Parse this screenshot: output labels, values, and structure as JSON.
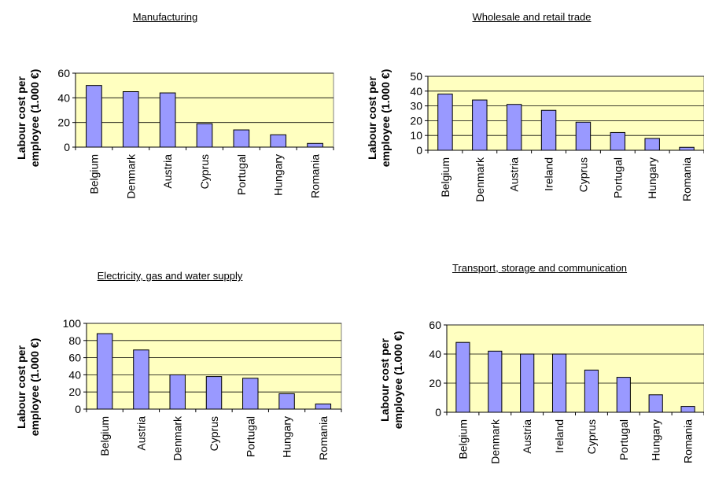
{
  "chart_data": [
    {
      "type": "bar",
      "title": "Manufacturing",
      "ylabel": "Labour cost per\nemployee (1.000 €)",
      "categories": [
        "Belgium",
        "Denmark",
        "Austria",
        "Cyprus",
        "Portugal",
        "Hungary",
        "Romania"
      ],
      "values": [
        50,
        45,
        44,
        19,
        14,
        10,
        3
      ],
      "ylim": [
        0,
        60
      ],
      "yticks": [
        "0",
        "20",
        "40",
        "60"
      ],
      "grid": true,
      "colors": {
        "bar": "#9999ff",
        "plot_bg": "#ffffc0"
      }
    },
    {
      "type": "bar",
      "title": "Wholesale and retail trade",
      "ylabel": "Labour cost per\nemployee (1.000 €)",
      "categories": [
        "Belgium",
        "Denmark",
        "Austria",
        "Ireland",
        "Cyprus",
        "Portugal",
        "Hungary",
        "Romania"
      ],
      "values": [
        38,
        34,
        31,
        27,
        19,
        12,
        8,
        2
      ],
      "ylim": [
        0,
        50
      ],
      "yticks": [
        "0",
        "10",
        "20",
        "30",
        "40",
        "50"
      ],
      "grid": true,
      "colors": {
        "bar": "#9999ff",
        "plot_bg": "#ffffc0"
      }
    },
    {
      "type": "bar",
      "title": "Electricity, gas and water supply",
      "ylabel": "Labour cost per\nemployee (1.000 €)",
      "categories": [
        "Belgium",
        "Austria",
        "Denmark",
        "Cyprus",
        "Portugal",
        "Hungary",
        "Romania"
      ],
      "values": [
        88,
        69,
        40,
        38,
        36,
        18,
        6
      ],
      "ylim": [
        0,
        100
      ],
      "yticks": [
        "0",
        "20",
        "40",
        "60",
        "80",
        "100"
      ],
      "grid": true,
      "colors": {
        "bar": "#9999ff",
        "plot_bg": "#ffffc0"
      }
    },
    {
      "type": "bar",
      "title": "Transport, storage and communication",
      "ylabel": "Labour cost per\nemployee (1.000 €)",
      "categories": [
        "Belgium",
        "Denmark",
        "Austria",
        "Ireland",
        "Cyprus",
        "Portugal",
        "Hungary",
        "Romania"
      ],
      "values": [
        48,
        42,
        40,
        40,
        29,
        24,
        12,
        4
      ],
      "ylim": [
        0,
        60
      ],
      "yticks": [
        "0",
        "20",
        "40",
        "60"
      ],
      "grid": true,
      "colors": {
        "bar": "#9999ff",
        "plot_bg": "#ffffc0"
      }
    }
  ]
}
